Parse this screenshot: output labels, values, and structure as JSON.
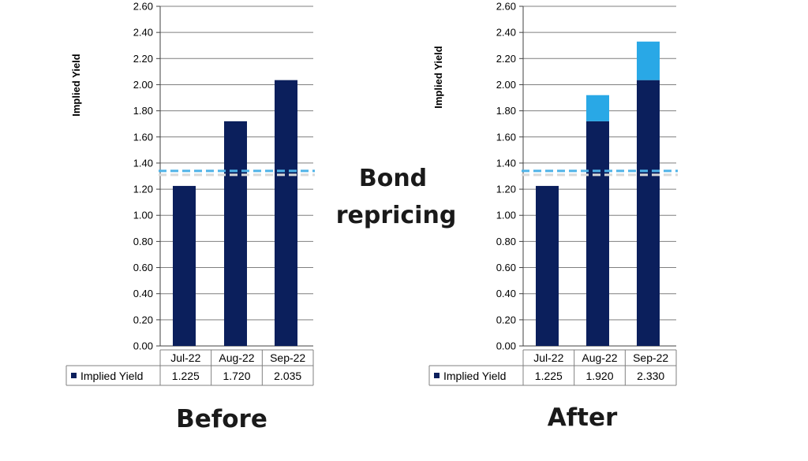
{
  "center_label": [
    "Bond",
    "repricing"
  ],
  "colors": {
    "base": "#0b1f5c",
    "increase": "#29a8e6",
    "threshold": "#4fb3e8",
    "grid": "#7f7f7f"
  },
  "chart_data": [
    {
      "type": "bar",
      "title": "Before",
      "ylabel": "Implied Yield",
      "ylim": [
        0,
        2.6
      ],
      "yticks": [
        "0.00",
        "0.20",
        "0.40",
        "0.60",
        "0.80",
        "1.00",
        "1.20",
        "1.40",
        "1.60",
        "1.80",
        "2.00",
        "2.20",
        "2.40",
        "2.60"
      ],
      "categories": [
        "Jul-22",
        "Aug-22",
        "Sep-22"
      ],
      "series": [
        {
          "name": "Implied Yield",
          "values": [
            1.225,
            1.72,
            2.035
          ]
        }
      ],
      "table_values": [
        "1.225",
        "1.720",
        "2.035"
      ],
      "threshold": 1.34,
      "grid": true
    },
    {
      "type": "bar",
      "title": "After",
      "ylabel": "Implied Yield",
      "ylim": [
        0,
        2.6
      ],
      "yticks": [
        "0.00",
        "0.20",
        "0.40",
        "0.60",
        "0.80",
        "1.00",
        "1.20",
        "1.40",
        "1.60",
        "1.80",
        "2.00",
        "2.20",
        "2.40",
        "2.60"
      ],
      "categories": [
        "Jul-22",
        "Aug-22",
        "Sep-22"
      ],
      "series": [
        {
          "name": "Implied Yield",
          "values": [
            1.225,
            1.92,
            2.33
          ]
        }
      ],
      "base_values": [
        1.225,
        1.72,
        2.035
      ],
      "table_values": [
        "1.225",
        "1.920",
        "2.330"
      ],
      "threshold": 1.34,
      "grid": true
    }
  ]
}
